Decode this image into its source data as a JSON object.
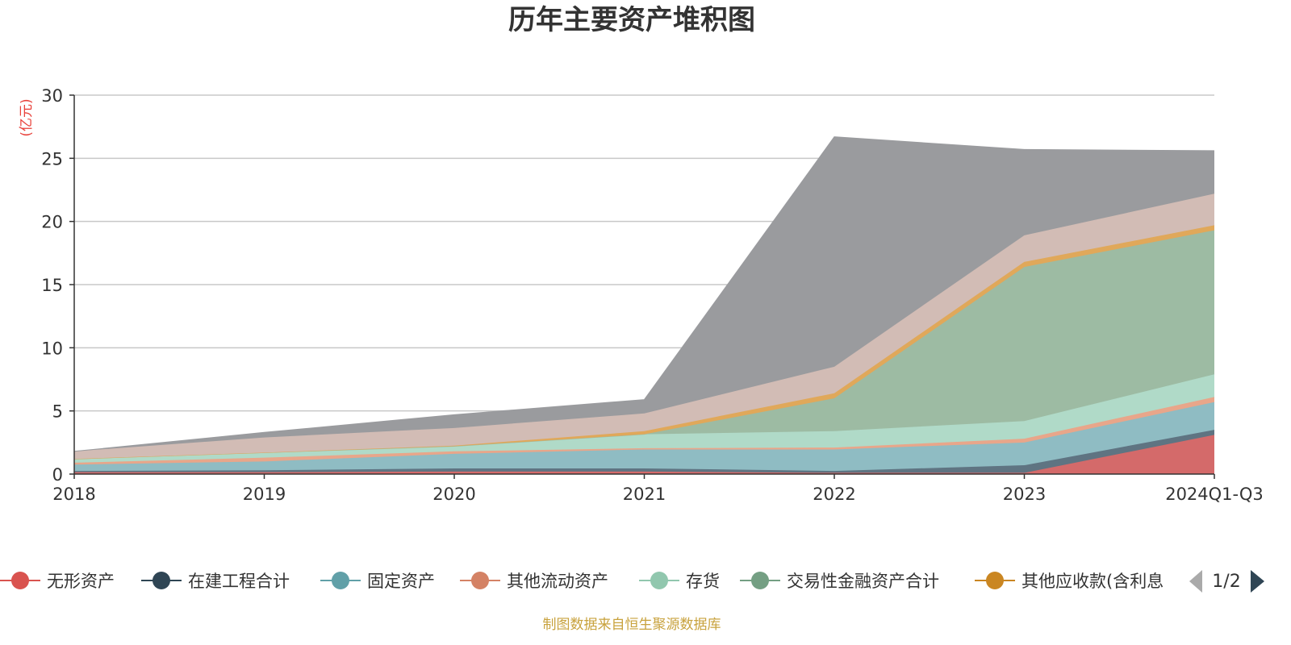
{
  "chart_data": {
    "type": "area",
    "stacked": true,
    "title": "历年主要资产堆积图",
    "unit": "(亿元)",
    "categories": [
      "2018",
      "2019",
      "2020",
      "2021",
      "2022",
      "2023",
      "2024Q1-Q3"
    ],
    "ylim": [
      0,
      30
    ],
    "yticks": [
      "0",
      "5",
      "10",
      "15",
      "20",
      "25",
      "30"
    ],
    "grid": true,
    "series": [
      {
        "name": "无形资产",
        "color": "#d9534f",
        "area_color": "#d46a6a",
        "values": [
          0.15,
          0.15,
          0.2,
          0.2,
          0.1,
          0.1,
          3.1
        ]
      },
      {
        "name": "在建工程合计",
        "color": "#2f4554",
        "area_color": "#5f7482",
        "values": [
          0.1,
          0.15,
          0.25,
          0.25,
          0.15,
          0.6,
          0.4
        ]
      },
      {
        "name": "固定资产",
        "color": "#61a0a8",
        "area_color": "#8fbcc3",
        "values": [
          0.5,
          0.7,
          1.15,
          1.5,
          1.7,
          1.8,
          2.2
        ]
      },
      {
        "name": "其他流动资产",
        "color": "#d48265",
        "area_color": "#e8a68a",
        "values": [
          0.15,
          0.3,
          0.2,
          0.1,
          0.15,
          0.3,
          0.4
        ]
      },
      {
        "name": "存货",
        "color": "#91c7ae",
        "area_color": "#b0dac8",
        "values": [
          0.3,
          0.4,
          0.4,
          1.1,
          1.3,
          1.4,
          1.8
        ]
      },
      {
        "name": "交易性金融资产合计",
        "color": "#749f83",
        "area_color": "#9dbba3",
        "values": [
          0.0,
          0.0,
          0.0,
          0.0,
          2.6,
          12.2,
          11.4
        ]
      },
      {
        "name": "其他应收款(含利息",
        "color": "#ca8622",
        "area_color": "#e0a85a",
        "values": [
          0.0,
          0.0,
          0.05,
          0.25,
          0.4,
          0.4,
          0.4
        ]
      },
      {
        "name": "",
        "color": "#bda29a",
        "area_color": "#d2bcb5",
        "values": [
          0.6,
          1.2,
          1.4,
          1.4,
          2.1,
          2.1,
          2.5
        ]
      },
      {
        "name": "",
        "color": "#6e7074",
        "area_color": "#9a9b9e",
        "values": [
          0.0,
          0.4,
          1.05,
          1.1,
          18.2,
          6.8,
          3.4
        ]
      }
    ],
    "legend_page": "1/2",
    "legend_position": "bottom"
  },
  "source": "制图数据来自恒生聚源数据库"
}
